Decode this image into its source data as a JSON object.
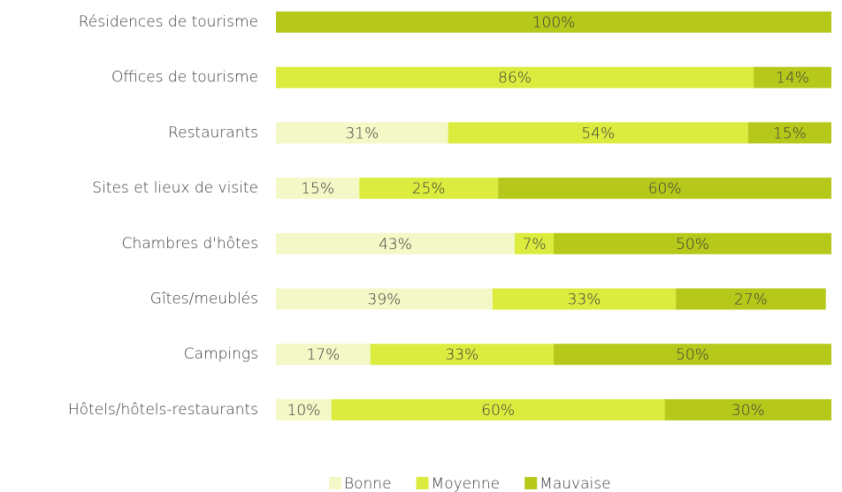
{
  "chart_data": {
    "type": "stacked_bar_horizontal",
    "categories": [
      "Résidences de tourisme",
      "Offices de tourisme",
      "Restaurants",
      "Sites et lieux de visite",
      "Chambres d'hôtes",
      "Gîtes/meublés",
      "Campings",
      "Hôtels/hôtels-restaurants"
    ],
    "xlim": [
      0,
      100
    ],
    "legend": "bottom",
    "series": [
      {
        "name": "Bonne",
        "color": "#f3f8c6",
        "values": [
          0,
          0,
          31,
          15,
          43,
          39,
          17,
          10
        ],
        "value_labels": [
          null,
          null,
          "31%",
          "15%",
          "43%",
          "39%",
          "17%",
          "10%"
        ]
      },
      {
        "name": "Moyenne",
        "color": "#dcec3f",
        "values": [
          0,
          86,
          54,
          25,
          7,
          33,
          33,
          60
        ],
        "value_labels": [
          null,
          "86%",
          "54%",
          "25%",
          "7%",
          "33%",
          "33%",
          "60%"
        ]
      },
      {
        "name": "Mauvaise",
        "color": "#b6c91b",
        "values": [
          100,
          14,
          15,
          60,
          50,
          27,
          50,
          30
        ],
        "value_labels": [
          "100%",
          "14%",
          "15%",
          "60%",
          "50%",
          "27%",
          "50%",
          "30%"
        ]
      }
    ]
  }
}
